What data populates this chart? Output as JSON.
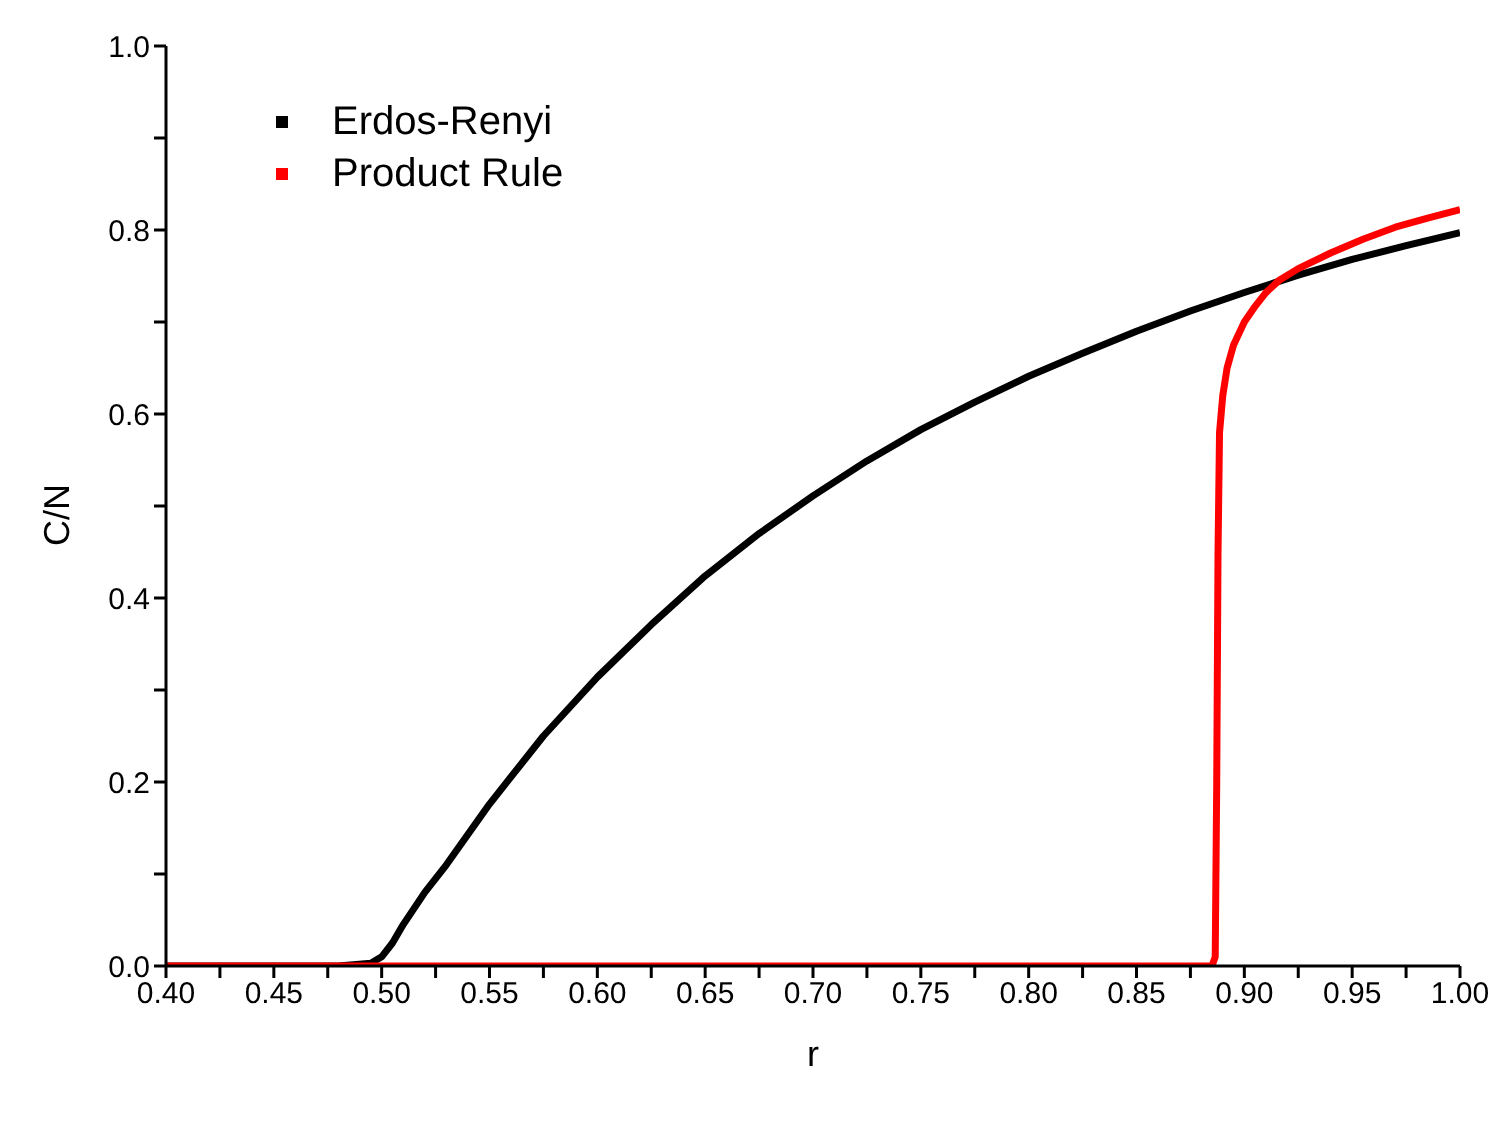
{
  "chart_data": {
    "type": "line",
    "xlabel": "r",
    "ylabel": "C/N",
    "xlim": [
      0.4,
      1.0
    ],
    "xticks": [
      {
        "value": 0.4,
        "label": "0.40"
      },
      {
        "value": 0.425,
        "label": null
      },
      {
        "value": 0.45,
        "label": "0.45"
      },
      {
        "value": 0.475,
        "label": null
      },
      {
        "value": 0.5,
        "label": "0.50"
      },
      {
        "value": 0.525,
        "label": null
      },
      {
        "value": 0.55,
        "label": "0.55"
      },
      {
        "value": 0.575,
        "label": null
      },
      {
        "value": 0.6,
        "label": "0.60"
      },
      {
        "value": 0.625,
        "label": null
      },
      {
        "value": 0.65,
        "label": "0.65"
      },
      {
        "value": 0.675,
        "label": null
      },
      {
        "value": 0.7,
        "label": "0.70"
      },
      {
        "value": 0.725,
        "label": null
      },
      {
        "value": 0.75,
        "label": "0.75"
      },
      {
        "value": 0.775,
        "label": null
      },
      {
        "value": 0.8,
        "label": "0.80"
      },
      {
        "value": 0.825,
        "label": null
      },
      {
        "value": 0.85,
        "label": "0.85"
      },
      {
        "value": 0.875,
        "label": null
      },
      {
        "value": 0.9,
        "label": "0.90"
      },
      {
        "value": 0.925,
        "label": null
      },
      {
        "value": 0.95,
        "label": "0.95"
      },
      {
        "value": 0.975,
        "label": null
      },
      {
        "value": 1.0,
        "label": "1.00"
      }
    ],
    "ylim": [
      0,
      1.0
    ],
    "yticks": [
      {
        "value": 0,
        "label": "0.0"
      },
      {
        "value": 0.1,
        "label": null
      },
      {
        "value": 0.2,
        "label": "0.2"
      },
      {
        "value": 0.3,
        "label": null
      },
      {
        "value": 0.4,
        "label": "0.4"
      },
      {
        "value": 0.5,
        "label": null
      },
      {
        "value": 0.6,
        "label": "0.6"
      },
      {
        "value": 0.7,
        "label": null
      },
      {
        "value": 0.8,
        "label": "0.8"
      },
      {
        "value": 0.9,
        "label": null
      },
      {
        "value": 1.0,
        "label": "1.0"
      }
    ],
    "legend": "top left",
    "grid": false,
    "series": [
      {
        "name": "Erdos-Renyi",
        "color": "#000000",
        "x": [
          0.4,
          0.48,
          0.495,
          0.5,
          0.505,
          0.51,
          0.52,
          0.53,
          0.55,
          0.575,
          0.6,
          0.625,
          0.65,
          0.675,
          0.7,
          0.725,
          0.75,
          0.775,
          0.8,
          0.825,
          0.85,
          0.875,
          0.9,
          0.925,
          0.95,
          0.975,
          1.0
        ],
        "values": [
          0,
          0,
          0.003,
          0.01,
          0.025,
          0.045,
          0.08,
          0.11,
          0.176,
          0.25,
          0.314,
          0.371,
          0.424,
          0.47,
          0.511,
          0.549,
          0.583,
          0.613,
          0.641,
          0.666,
          0.69,
          0.712,
          0.732,
          0.751,
          0.768,
          0.783,
          0.797
        ]
      },
      {
        "name": "Product Rule",
        "color": "#ff0000",
        "x": [
          0.4,
          0.885,
          0.8865,
          0.8872,
          0.8878,
          0.8885,
          0.89,
          0.892,
          0.895,
          0.9,
          0.905,
          0.91,
          0.916,
          0.925,
          0.94,
          0.955,
          0.97,
          0.985,
          1.0
        ],
        "values": [
          0,
          0,
          0.01,
          0.2,
          0.45,
          0.58,
          0.62,
          0.65,
          0.675,
          0.7,
          0.717,
          0.732,
          0.745,
          0.758,
          0.775,
          0.79,
          0.803,
          0.813,
          0.822
        ]
      }
    ]
  }
}
